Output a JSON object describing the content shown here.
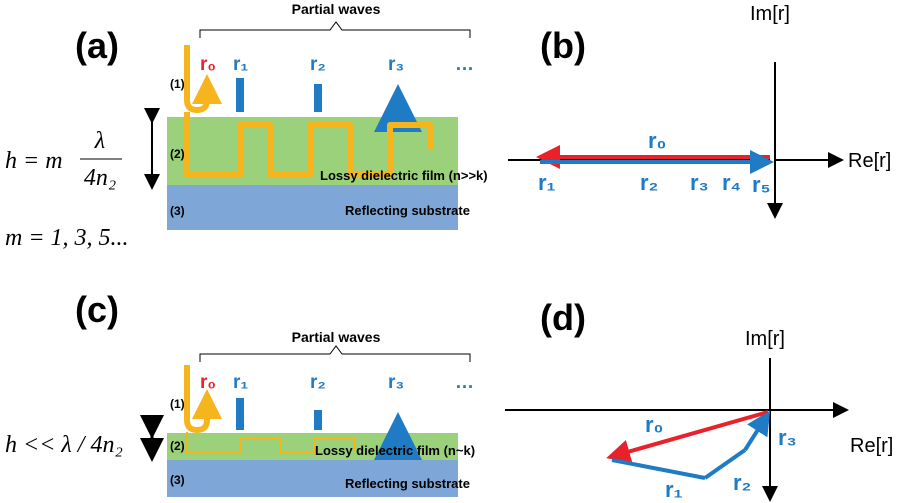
{
  "panel_a": {
    "label": "(a)",
    "partial_waves": "Partial waves",
    "rays": [
      "r₀",
      "r₁",
      "r₂",
      "r₃",
      "…"
    ],
    "layers": [
      "(1)",
      "(2)",
      "(3)"
    ],
    "film": "Lossy dielectric film (n>>k)",
    "substrate": "Reflecting substrate",
    "formula_lhs": "h = m",
    "formula_num": "λ",
    "formula_den": "4n₂",
    "formula_m": "m = 1, 3, 5..."
  },
  "panel_b": {
    "label": "(b)",
    "im_axis": "Im[r]",
    "re_axis": "Re[r]",
    "r0": "r₀",
    "partials": [
      "r₁",
      "r₂",
      "r₃",
      "r₄",
      "r₅"
    ]
  },
  "panel_c": {
    "label": "(c)",
    "partial_waves": "Partial waves",
    "rays": [
      "r₀",
      "r₁",
      "r₂",
      "r₃",
      "…"
    ],
    "layers": [
      "(1)",
      "(2)",
      "(3)"
    ],
    "film": "Lossy dielectric film (n~k)",
    "substrate": "Reflecting substrate",
    "formula": "h << λ / 4n₂"
  },
  "panel_d": {
    "label": "(d)",
    "im_axis": "Im[r]",
    "re_axis": "Re[r]",
    "r0": "r₀",
    "partials": [
      "r₁",
      "r₂",
      "r₃"
    ]
  }
}
